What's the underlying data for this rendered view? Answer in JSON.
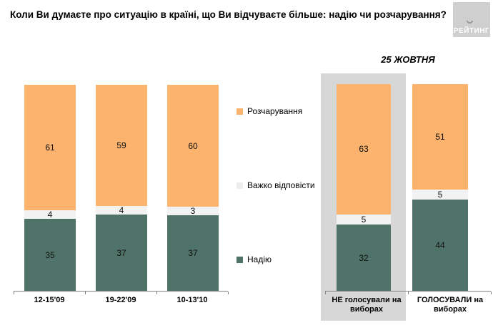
{
  "title": "Коли Ви думаєте про ситуацію в країні, що Ви відчуваєте більше: надію чи розчарування?",
  "logo": {
    "text": "РЕЙТИНГ"
  },
  "colors": {
    "hope": "#4f7368",
    "difficult": "#f2f2f2",
    "disappointment": "#fbb36e",
    "highlight": "#d7d7d7",
    "axis": "#808080"
  },
  "chart_data": {
    "type": "bar",
    "stacked": true,
    "units": "percent",
    "title": "Коли Ви думаєте про ситуацію в країні, що Ви відчуваєте більше: надію чи розчарування?",
    "categories": [
      "12-15'09",
      "19-22'09",
      "10-13'10",
      "НЕ голосували на виборах",
      "ГОЛОСУВАЛИ на виборах"
    ],
    "series": [
      {
        "name": "Надію",
        "color": "#4f7368",
        "values": [
          35,
          37,
          37,
          32,
          44
        ]
      },
      {
        "name": "Важко відповісти",
        "color": "#f2f2f2",
        "values": [
          4,
          4,
          3,
          5,
          5
        ]
      },
      {
        "name": "Розчарування",
        "color": "#fbb36e",
        "values": [
          61,
          59,
          60,
          63,
          51
        ]
      }
    ],
    "annotation": "25 ЖОВТНЯ",
    "annotation_applies_to": [
      "НЕ голосували на виборах",
      "ГОЛОСУВАЛИ на виборах"
    ],
    "highlighted_category": "НЕ голосували на виборах",
    "ylim": [
      0,
      100
    ],
    "legend_position": "middle-between-groups",
    "grid": false
  }
}
